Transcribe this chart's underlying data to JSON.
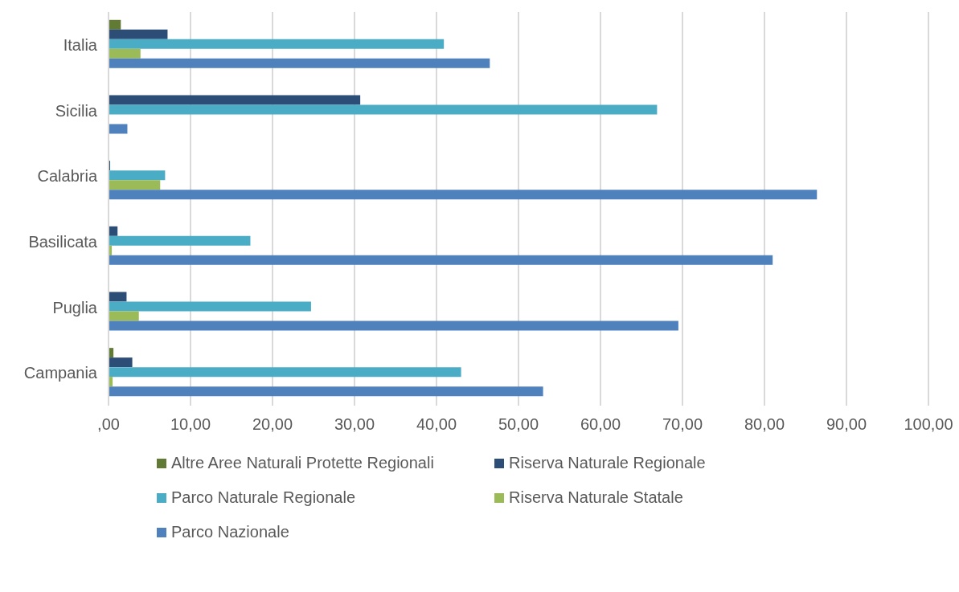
{
  "chart_data": {
    "type": "bar",
    "orientation": "horizontal",
    "categories": [
      "Italia",
      "Sicilia",
      "Calabria",
      "Basilicata",
      "Puglia",
      "Campania"
    ],
    "series": [
      {
        "name": "Altre Aree Naturali Protette Regionali",
        "color": "#617a34",
        "values": [
          1.5,
          null,
          null,
          null,
          null,
          0.6
        ]
      },
      {
        "name": "Riserva Naturale Regionale",
        "color": "#2c4d75",
        "values": [
          7.2,
          30.7,
          0.2,
          1.1,
          2.2,
          2.9
        ]
      },
      {
        "name": "Parco Naturale Regionale",
        "color": "#4bacc6",
        "values": [
          40.9,
          66.9,
          6.9,
          17.3,
          24.7,
          43.0
        ]
      },
      {
        "name": "Riserva Naturale Statale",
        "color": "#9bbb59",
        "values": [
          3.9,
          null,
          6.3,
          0.4,
          3.7,
          0.5
        ]
      },
      {
        "name": "Parco Nazionale",
        "color": "#4f81bd",
        "values": [
          46.5,
          2.3,
          86.4,
          81.0,
          69.5,
          53.0
        ]
      }
    ],
    "xlim": [
      0,
      100
    ],
    "xticks": [
      {
        "value": 0,
        "label": ",00"
      },
      {
        "value": 10,
        "label": "10,00"
      },
      {
        "value": 20,
        "label": "20,00"
      },
      {
        "value": 30,
        "label": "30,00"
      },
      {
        "value": 40,
        "label": "40,00"
      },
      {
        "value": 50,
        "label": "50,00"
      },
      {
        "value": 60,
        "label": "60,00"
      },
      {
        "value": 70,
        "label": "70,00"
      },
      {
        "value": 80,
        "label": "80,00"
      },
      {
        "value": 90,
        "label": "90,00"
      },
      {
        "value": 100,
        "label": "100,00"
      }
    ],
    "grid": "x",
    "legend": "bottom"
  }
}
